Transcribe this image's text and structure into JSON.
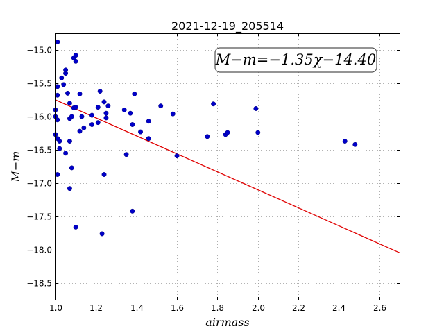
{
  "chart_data": {
    "type": "scatter",
    "title": "2021-12-19_205514",
    "xlabel": "airmass",
    "ylabel": "M−m",
    "xlim": [
      1.0,
      2.7
    ],
    "ylim": [
      -18.75,
      -14.75
    ],
    "xticks": [
      1.0,
      1.2,
      1.4,
      1.6,
      1.8,
      2.0,
      2.2,
      2.4,
      2.6
    ],
    "xtick_labels": [
      "1.0",
      "1.2",
      "1.4",
      "1.6",
      "1.8",
      "2.0",
      "2.2",
      "2.4",
      "2.6"
    ],
    "yticks": [
      -15.0,
      -15.5,
      -16.0,
      -16.5,
      -17.0,
      -17.5,
      -18.0,
      -18.5
    ],
    "ytick_labels": [
      "−15.0",
      "−15.5",
      "−16.0",
      "−16.5",
      "−17.0",
      "−17.5",
      "−18.0",
      "−18.5"
    ],
    "grid": true,
    "fit": {
      "slope": -1.35,
      "intercept": -14.4
    },
    "annotation": "M−m=−1.35χ−14.40",
    "colors": {
      "points": "#0000c8",
      "fit": "#e00000"
    },
    "points": [
      {
        "x": 1.01,
        "y": -14.88
      },
      {
        "x": 1.01,
        "y": -15.55
      },
      {
        "x": 1.01,
        "y": -15.68
      },
      {
        "x": 1.0,
        "y": -15.9
      },
      {
        "x": 1.0,
        "y": -16.0
      },
      {
        "x": 1.01,
        "y": -16.05
      },
      {
        "x": 1.0,
        "y": -16.27
      },
      {
        "x": 1.01,
        "y": -16.33
      },
      {
        "x": 1.02,
        "y": -16.37
      },
      {
        "x": 1.02,
        "y": -16.48
      },
      {
        "x": 1.01,
        "y": -16.87
      },
      {
        "x": 1.03,
        "y": -15.42
      },
      {
        "x": 1.04,
        "y": -15.52
      },
      {
        "x": 1.05,
        "y": -15.35
      },
      {
        "x": 1.05,
        "y": -15.3
      },
      {
        "x": 1.06,
        "y": -15.65
      },
      {
        "x": 1.07,
        "y": -15.8
      },
      {
        "x": 1.07,
        "y": -16.03
      },
      {
        "x": 1.07,
        "y": -16.37
      },
      {
        "x": 1.05,
        "y": -16.55
      },
      {
        "x": 1.08,
        "y": -16.77
      },
      {
        "x": 1.07,
        "y": -17.08
      },
      {
        "x": 1.09,
        "y": -15.12
      },
      {
        "x": 1.1,
        "y": -15.08
      },
      {
        "x": 1.1,
        "y": -15.17
      },
      {
        "x": 1.09,
        "y": -15.87
      },
      {
        "x": 1.1,
        "y": -15.86
      },
      {
        "x": 1.08,
        "y": -16.0
      },
      {
        "x": 1.12,
        "y": -15.66
      },
      {
        "x": 1.13,
        "y": -16.0
      },
      {
        "x": 1.14,
        "y": -16.17
      },
      {
        "x": 1.12,
        "y": -16.22
      },
      {
        "x": 1.1,
        "y": -17.66
      },
      {
        "x": 1.18,
        "y": -15.98
      },
      {
        "x": 1.18,
        "y": -16.12
      },
      {
        "x": 1.21,
        "y": -16.09
      },
      {
        "x": 1.21,
        "y": -15.86
      },
      {
        "x": 1.22,
        "y": -15.62
      },
      {
        "x": 1.24,
        "y": -15.78
      },
      {
        "x": 1.25,
        "y": -15.95
      },
      {
        "x": 1.25,
        "y": -16.02
      },
      {
        "x": 1.26,
        "y": -15.84
      },
      {
        "x": 1.24,
        "y": -16.87
      },
      {
        "x": 1.23,
        "y": -17.76
      },
      {
        "x": 1.34,
        "y": -15.9
      },
      {
        "x": 1.37,
        "y": -15.95
      },
      {
        "x": 1.38,
        "y": -16.12
      },
      {
        "x": 1.35,
        "y": -16.57
      },
      {
        "x": 1.38,
        "y": -17.42
      },
      {
        "x": 1.39,
        "y": -15.66
      },
      {
        "x": 1.42,
        "y": -16.23
      },
      {
        "x": 1.46,
        "y": -16.07
      },
      {
        "x": 1.46,
        "y": -16.33
      },
      {
        "x": 1.52,
        "y": -15.84
      },
      {
        "x": 1.58,
        "y": -15.96
      },
      {
        "x": 1.6,
        "y": -16.59
      },
      {
        "x": 1.75,
        "y": -16.3
      },
      {
        "x": 1.78,
        "y": -15.81
      },
      {
        "x": 1.84,
        "y": -16.27
      },
      {
        "x": 1.85,
        "y": -16.24
      },
      {
        "x": 1.99,
        "y": -15.88
      },
      {
        "x": 2.0,
        "y": -16.24
      },
      {
        "x": 2.43,
        "y": -16.37
      },
      {
        "x": 2.48,
        "y": -16.42
      }
    ]
  }
}
